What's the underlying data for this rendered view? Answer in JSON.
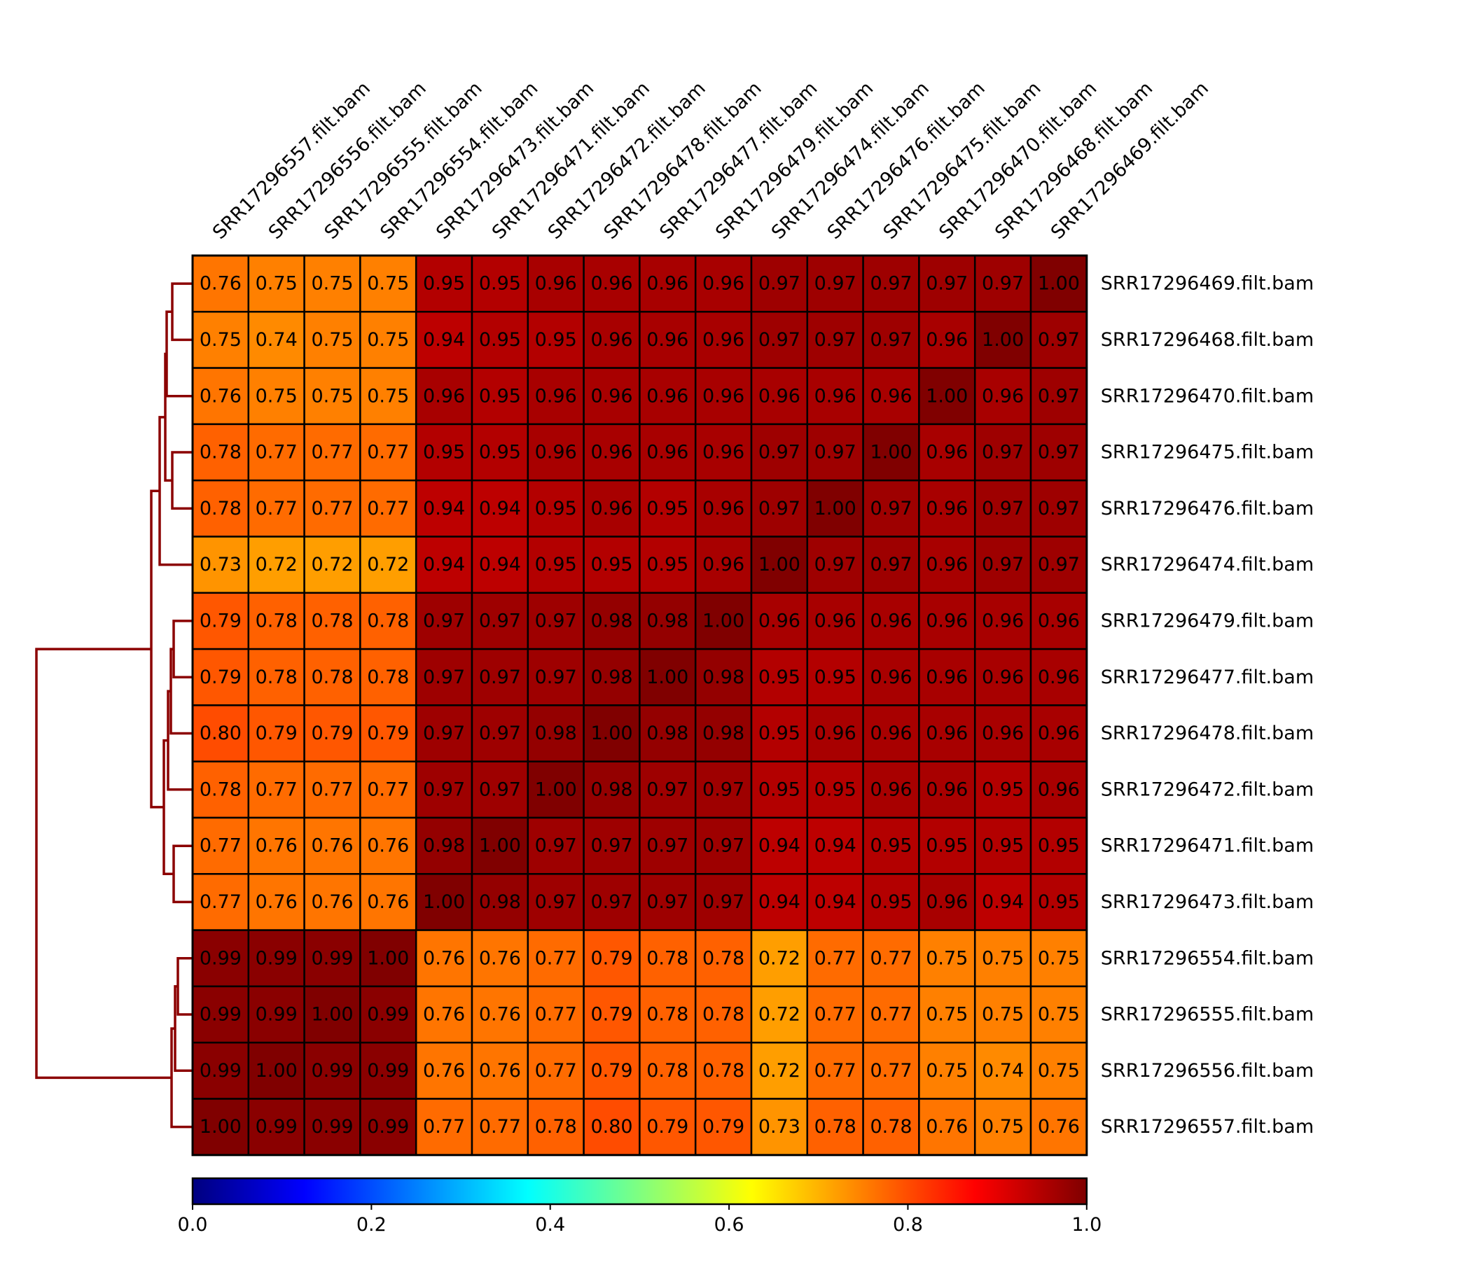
{
  "chart_data": {
    "type": "heatmap",
    "title": "",
    "columns": [
      "SRR17296557.filt.bam",
      "SRR17296556.filt.bam",
      "SRR17296555.filt.bam",
      "SRR17296554.filt.bam",
      "SRR17296473.filt.bam",
      "SRR17296471.filt.bam",
      "SRR17296472.filt.bam",
      "SRR17296478.filt.bam",
      "SRR17296477.filt.bam",
      "SRR17296479.filt.bam",
      "SRR17296474.filt.bam",
      "SRR17296476.filt.bam",
      "SRR17296475.filt.bam",
      "SRR17296470.filt.bam",
      "SRR17296468.filt.bam",
      "SRR17296469.filt.bam"
    ],
    "rows": [
      "SRR17296469.filt.bam",
      "SRR17296468.filt.bam",
      "SRR17296470.filt.bam",
      "SRR17296475.filt.bam",
      "SRR17296476.filt.bam",
      "SRR17296474.filt.bam",
      "SRR17296479.filt.bam",
      "SRR17296477.filt.bam",
      "SRR17296478.filt.bam",
      "SRR17296472.filt.bam",
      "SRR17296471.filt.bam",
      "SRR17296473.filt.bam",
      "SRR17296554.filt.bam",
      "SRR17296555.filt.bam",
      "SRR17296556.filt.bam",
      "SRR17296557.filt.bam"
    ],
    "values": [
      [
        0.76,
        0.75,
        0.75,
        0.75,
        0.95,
        0.95,
        0.96,
        0.96,
        0.96,
        0.96,
        0.97,
        0.97,
        0.97,
        0.97,
        0.97,
        1.0
      ],
      [
        0.75,
        0.74,
        0.75,
        0.75,
        0.94,
        0.95,
        0.95,
        0.96,
        0.96,
        0.96,
        0.97,
        0.97,
        0.97,
        0.96,
        1.0,
        0.97
      ],
      [
        0.76,
        0.75,
        0.75,
        0.75,
        0.96,
        0.95,
        0.96,
        0.96,
        0.96,
        0.96,
        0.96,
        0.96,
        0.96,
        1.0,
        0.96,
        0.97
      ],
      [
        0.78,
        0.77,
        0.77,
        0.77,
        0.95,
        0.95,
        0.96,
        0.96,
        0.96,
        0.96,
        0.97,
        0.97,
        1.0,
        0.96,
        0.97,
        0.97
      ],
      [
        0.78,
        0.77,
        0.77,
        0.77,
        0.94,
        0.94,
        0.95,
        0.96,
        0.95,
        0.96,
        0.97,
        1.0,
        0.97,
        0.96,
        0.97,
        0.97
      ],
      [
        0.73,
        0.72,
        0.72,
        0.72,
        0.94,
        0.94,
        0.95,
        0.95,
        0.95,
        0.96,
        1.0,
        0.97,
        0.97,
        0.96,
        0.97,
        0.97
      ],
      [
        0.79,
        0.78,
        0.78,
        0.78,
        0.97,
        0.97,
        0.97,
        0.98,
        0.98,
        1.0,
        0.96,
        0.96,
        0.96,
        0.96,
        0.96,
        0.96
      ],
      [
        0.79,
        0.78,
        0.78,
        0.78,
        0.97,
        0.97,
        0.97,
        0.98,
        1.0,
        0.98,
        0.95,
        0.95,
        0.96,
        0.96,
        0.96,
        0.96
      ],
      [
        0.8,
        0.79,
        0.79,
        0.79,
        0.97,
        0.97,
        0.98,
        1.0,
        0.98,
        0.98,
        0.95,
        0.96,
        0.96,
        0.96,
        0.96,
        0.96
      ],
      [
        0.78,
        0.77,
        0.77,
        0.77,
        0.97,
        0.97,
        1.0,
        0.98,
        0.97,
        0.97,
        0.95,
        0.95,
        0.96,
        0.96,
        0.95,
        0.96
      ],
      [
        0.77,
        0.76,
        0.76,
        0.76,
        0.98,
        1.0,
        0.97,
        0.97,
        0.97,
        0.97,
        0.94,
        0.94,
        0.95,
        0.95,
        0.95,
        0.95
      ],
      [
        0.77,
        0.76,
        0.76,
        0.76,
        1.0,
        0.98,
        0.97,
        0.97,
        0.97,
        0.97,
        0.94,
        0.94,
        0.95,
        0.96,
        0.94,
        0.95
      ],
      [
        0.99,
        0.99,
        0.99,
        1.0,
        0.76,
        0.76,
        0.77,
        0.79,
        0.78,
        0.78,
        0.72,
        0.77,
        0.77,
        0.75,
        0.75,
        0.75
      ],
      [
        0.99,
        0.99,
        1.0,
        0.99,
        0.76,
        0.76,
        0.77,
        0.79,
        0.78,
        0.78,
        0.72,
        0.77,
        0.77,
        0.75,
        0.75,
        0.75
      ],
      [
        0.99,
        1.0,
        0.99,
        0.99,
        0.76,
        0.76,
        0.77,
        0.79,
        0.78,
        0.78,
        0.72,
        0.77,
        0.77,
        0.75,
        0.74,
        0.75
      ],
      [
        1.0,
        0.99,
        0.99,
        0.99,
        0.77,
        0.77,
        0.78,
        0.8,
        0.79,
        0.79,
        0.73,
        0.78,
        0.78,
        0.76,
        0.75,
        0.76
      ]
    ],
    "colormap": "jet",
    "value_range": [
      0.0,
      1.0
    ],
    "colorbar": {
      "placement": "bottom",
      "ticks": [
        "0.0",
        "0.2",
        "0.4",
        "0.6",
        "0.8",
        "1.0"
      ]
    },
    "dendrogram": {
      "placement": "left",
      "color": "#8b0000"
    },
    "cell_border_color": "#000000"
  }
}
